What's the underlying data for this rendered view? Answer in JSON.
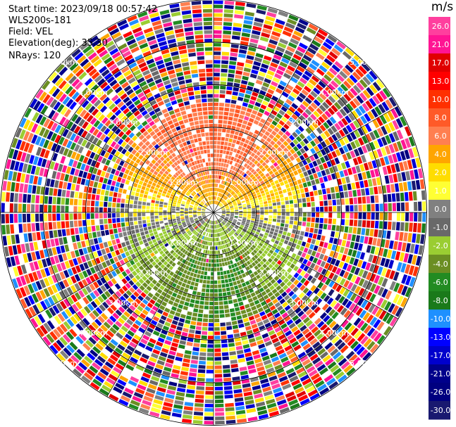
{
  "header": {
    "start_time": "Start time: 2023/09/18 00:57:42",
    "instrument": "WLS200s-181",
    "field": "Field: VEL",
    "elevation": "Elevation(deg): 35.30",
    "nrays": "NRays: 120"
  },
  "chart_data": {
    "type": "heatmap",
    "subtype": "polar-ppi",
    "field": "VEL",
    "units": "m/s",
    "elevation_deg": 35.3,
    "n_rays": 120,
    "range_rings_km": [
      1.0,
      2.0,
      3.0,
      4.0,
      5.0
    ],
    "ring_labels": [
      "1.00km",
      "2.00km",
      "3.00km",
      "4.00km",
      "5.00km"
    ],
    "colorbar": {
      "label": "m/s",
      "ticks": [
        "26.0",
        "21.0",
        "17.0",
        "13.0",
        "10.0",
        "8.0",
        "6.0",
        "4.0",
        "2.0",
        "1.0",
        "0.0",
        "-1.0",
        "-2.0",
        "-4.0",
        "-6.0",
        "-8.0",
        "-10.0",
        "-13.0",
        "-17.0",
        "-21.0",
        "-26.0",
        "-30.0"
      ],
      "colors": [
        "#ff3f9e",
        "#ff1493",
        "#e00000",
        "#ff0000",
        "#ff3000",
        "#ff5a28",
        "#ff7f50",
        "#ffa500",
        "#ffdd00",
        "#ffff33",
        "#808080",
        "#696969",
        "#9acd32",
        "#6b8e23",
        "#228b22",
        "#1a7a1a",
        "#1e90ff",
        "#0000ff",
        "#0000cd",
        "#00008b",
        "#000080",
        "#191970"
      ]
    },
    "structure": {
      "inner_upper_half": "positive (orange/yellow, 2 to 8 m/s)",
      "inner_lower_half": "negative (green/olive, -2 to -8 m/s)",
      "near_horizontal_axis": "near zero (gray)",
      "outer_ring": "noise (full color range)"
    }
  }
}
